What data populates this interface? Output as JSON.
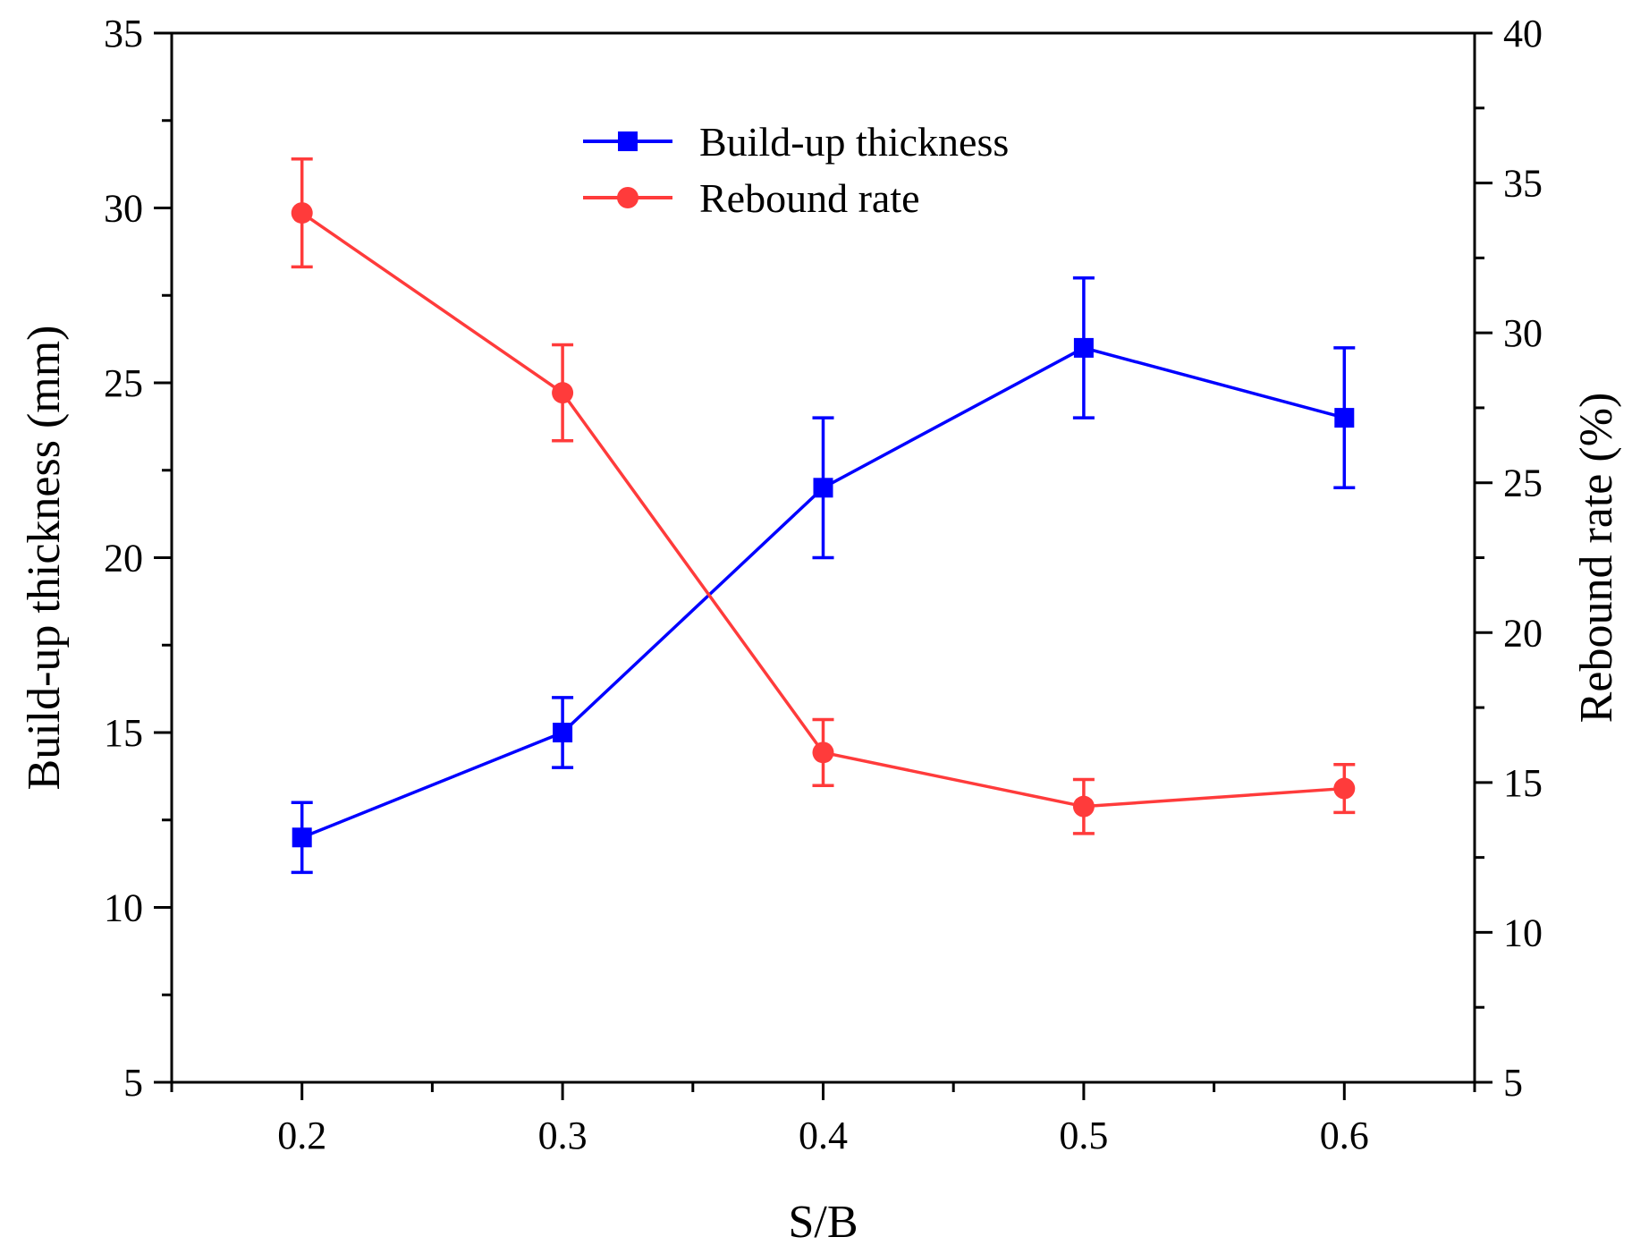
{
  "chart_data": {
    "type": "line",
    "xlabel": "S/B",
    "ylabel_left": "Build-up thickness (mm)",
    "ylabel_right": "Rebound rate (%)",
    "xlim": [
      0.15,
      0.65
    ],
    "xticks": [
      "0.2",
      "0.3",
      "0.4",
      "0.5",
      "0.6"
    ],
    "ylim_left": [
      5,
      35
    ],
    "yticks_left": [
      "5",
      "10",
      "15",
      "20",
      "25",
      "30",
      "35"
    ],
    "ylim_right": [
      5,
      40
    ],
    "yticks_right": [
      "5",
      "10",
      "15",
      "20",
      "25",
      "30",
      "35",
      "40"
    ],
    "legend_position": "top-center",
    "series": [
      {
        "name": "Build-up thickness",
        "axis": "left",
        "color": "#0000ff",
        "marker": "square",
        "x": [
          0.2,
          0.3,
          0.4,
          0.5,
          0.6
        ],
        "y": [
          12,
          15,
          22,
          26,
          24
        ],
        "error": [
          1,
          1,
          2,
          2,
          2
        ]
      },
      {
        "name": "Rebound rate",
        "axis": "right",
        "color": "#ff3b3b",
        "marker": "circle",
        "x": [
          0.2,
          0.3,
          0.4,
          0.5,
          0.6
        ],
        "y": [
          34,
          28,
          16,
          14.2,
          14.8
        ],
        "error": [
          1.8,
          1.6,
          1.1,
          0.9,
          0.8
        ]
      }
    ]
  }
}
